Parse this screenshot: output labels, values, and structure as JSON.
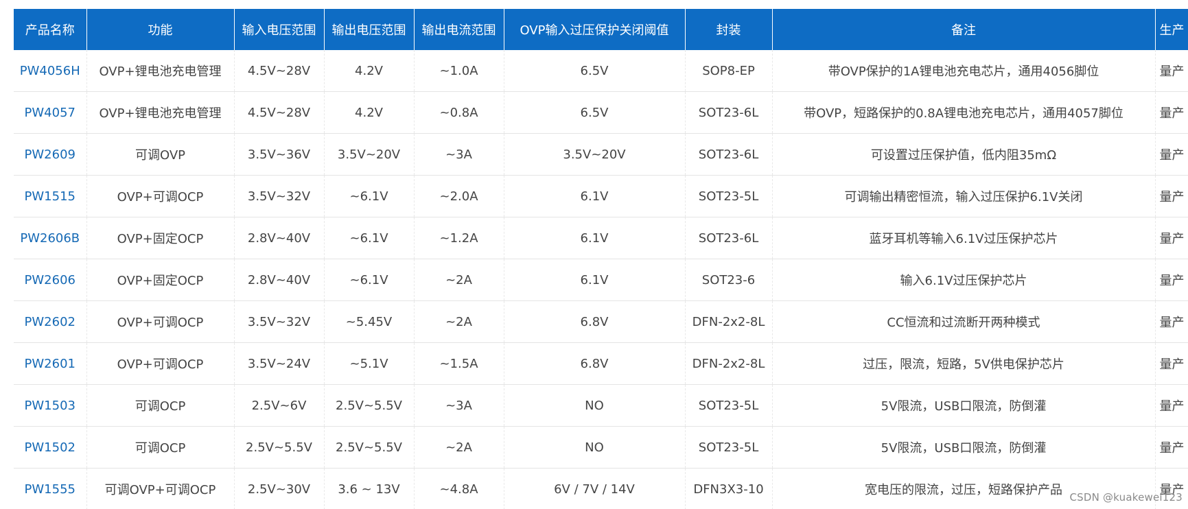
{
  "table": {
    "headers": [
      "产品名称",
      "功能",
      "输入电压范围",
      "输出电压范围",
      "输出电流范围",
      "OVP输入过压保护关闭阈值",
      "封装",
      "备注",
      "生产"
    ],
    "rows": [
      [
        "PW4056H",
        "OVP+锂电池充电管理",
        "4.5V~28V",
        "4.2V",
        "~1.0A",
        "6.5V",
        "SOP8-EP",
        "带OVP保护的1A锂电池充电芯片，通用4056脚位",
        "量产"
      ],
      [
        "PW4057",
        "OVP+锂电池充电管理",
        "4.5V~28V",
        "4.2V",
        "~0.8A",
        "6.5V",
        "SOT23-6L",
        "带OVP，短路保护的0.8A锂电池充电芯片，通用4057脚位",
        "量产"
      ],
      [
        "PW2609",
        "可调OVP",
        "3.5V~36V",
        "3.5V~20V",
        "~3A",
        "3.5V~20V",
        "SOT23-6L",
        "可设置过压保护值，低内阻35mΩ",
        "量产"
      ],
      [
        "PW1515",
        "OVP+可调OCP",
        "3.5V~32V",
        "~6.1V",
        "~2.0A",
        "6.1V",
        "SOT23-5L",
        "可调输出精密恒流，输入过压保护6.1V关闭",
        "量产"
      ],
      [
        "PW2606B",
        "OVP+固定OCP",
        "2.8V~40V",
        "~6.1V",
        "~1.2A",
        "6.1V",
        "SOT23-6L",
        "蓝牙耳机等输入6.1V过压保护芯片",
        "量产"
      ],
      [
        "PW2606",
        "OVP+固定OCP",
        "2.8V~40V",
        "~6.1V",
        "~2A",
        "6.1V",
        "SOT23-6",
        "输入6.1V过压保护芯片",
        "量产"
      ],
      [
        "PW2602",
        "OVP+可调OCP",
        "3.5V~32V",
        "~5.45V",
        "~2A",
        "6.8V",
        "DFN-2x2-8L",
        "CC恒流和过流断开两种模式",
        "量产"
      ],
      [
        "PW2601",
        "OVP+可调OCP",
        "3.5V~24V",
        "~5.1V",
        "~1.5A",
        "6.8V",
        "DFN-2x2-8L",
        "过压，限流，短路，5V供电保护芯片",
        "量产"
      ],
      [
        "PW1503",
        "可调OCP",
        "2.5V~6V",
        "2.5V~5.5V",
        "~3A",
        "NO",
        "SOT23-5L",
        "5V限流，USB口限流，防倒灌",
        "量产"
      ],
      [
        "PW1502",
        "可调OCP",
        "2.5V~5.5V",
        "2.5V~5.5V",
        "~2A",
        "NO",
        "SOT23-5L",
        "5V限流，USB口限流，防倒灌",
        "量产"
      ],
      [
        "PW1555",
        "可调OVP+可调OCP",
        "2.5V~30V",
        "3.6 ~ 13V",
        "~4.8A",
        "6V / 7V / 14V",
        "DFN3X3-10",
        "宽电压的限流，过压，短路保护产品",
        "量产"
      ]
    ]
  },
  "watermark": "CSDN @kuakewei123",
  "colors": {
    "header_bg": "#0e6cc4",
    "header_text": "#ffffff",
    "link": "#1569b5",
    "cell_text": "#444444"
  }
}
